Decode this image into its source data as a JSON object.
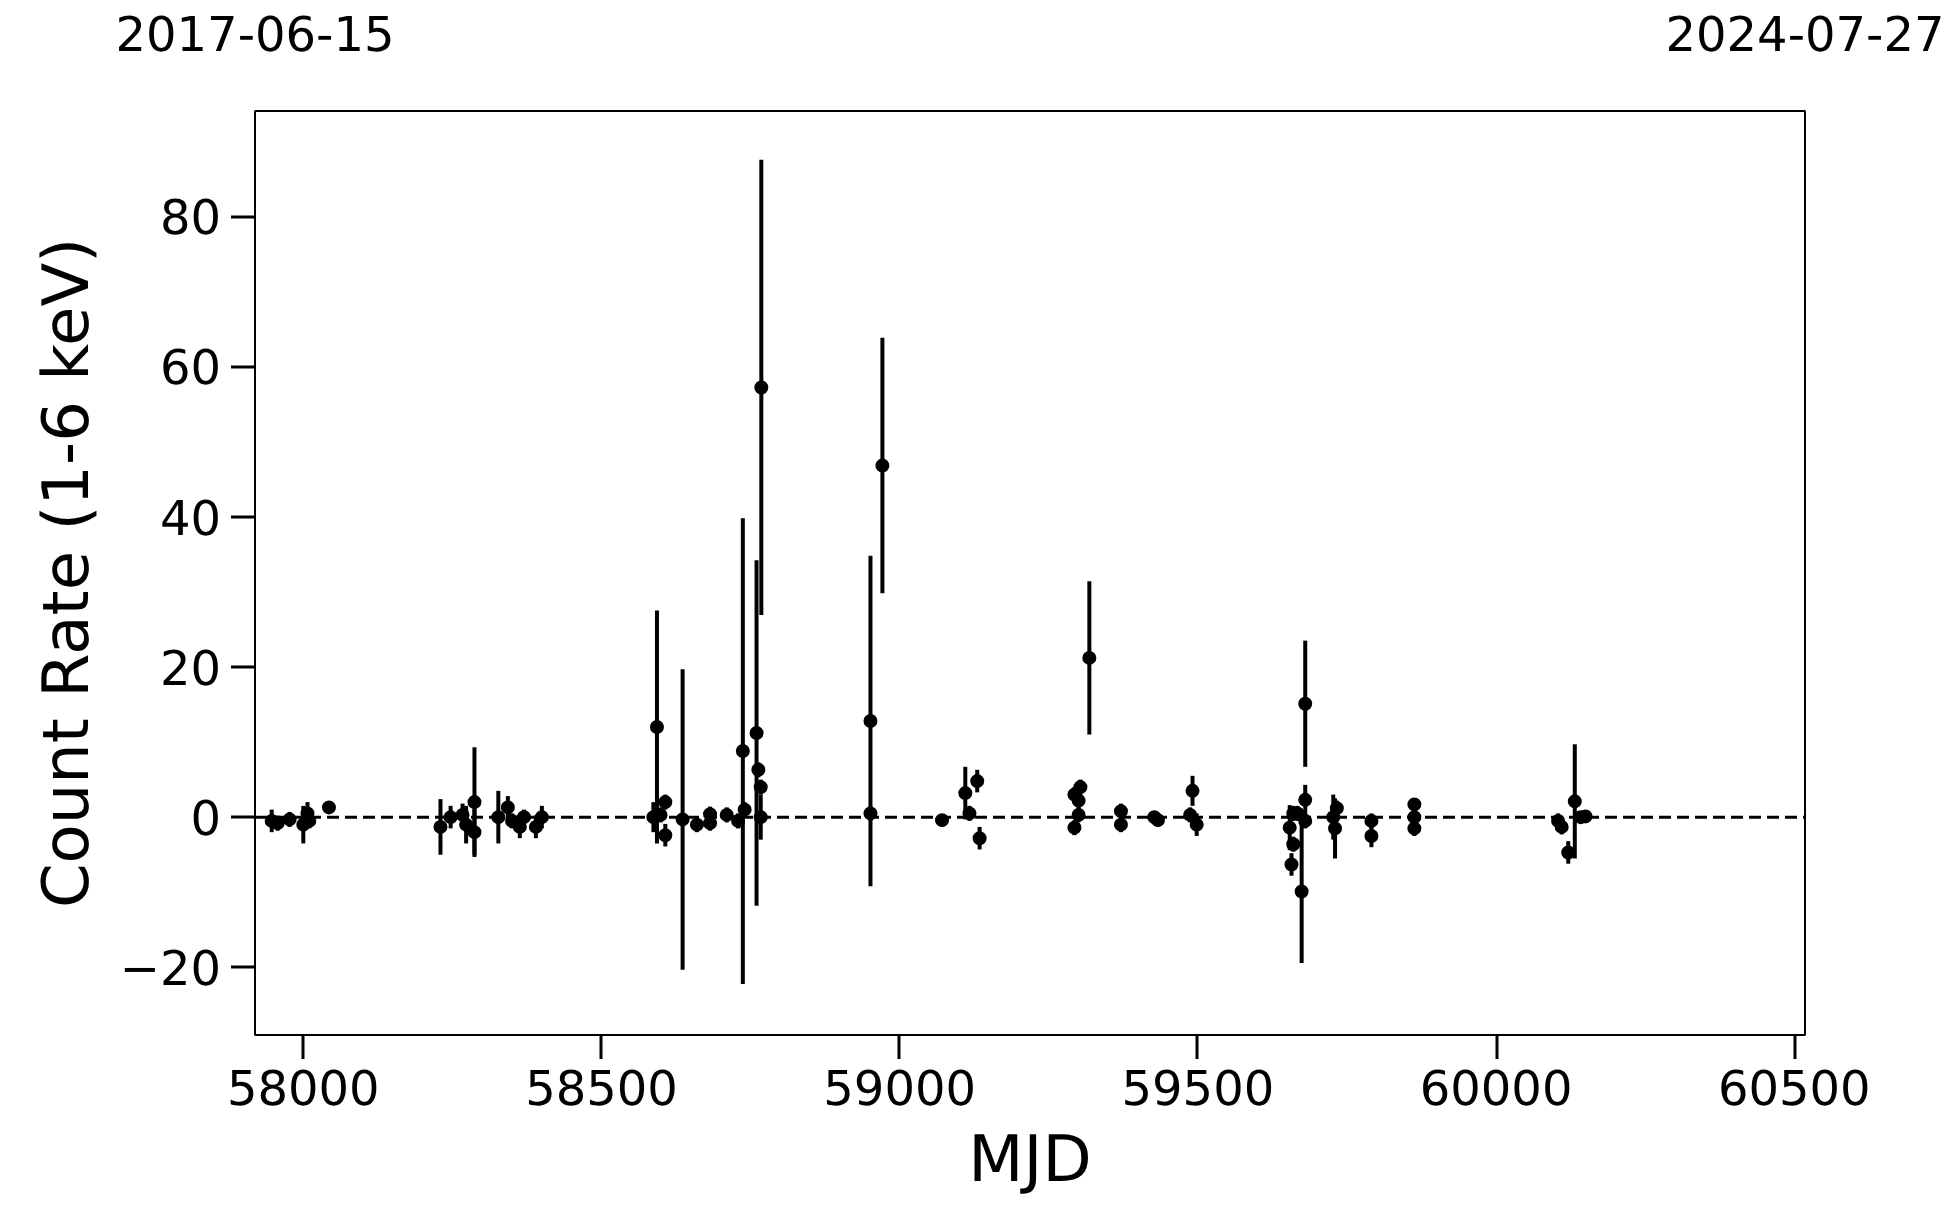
{
  "chart_data": {
    "type": "scatter",
    "xlabel": "MJD",
    "ylabel": "Count Rate (1-6 keV)",
    "x": [
      57947,
      57957,
      57977,
      58000,
      58007,
      58010,
      58043,
      58230,
      58247,
      58267,
      58273,
      58287,
      58287,
      58327,
      58343,
      58350,
      58363,
      58370,
      58390,
      58400,
      58593,
      58587,
      58599,
      58607,
      58607,
      58636,
      58660,
      58682,
      58682,
      58710,
      58729,
      58737,
      58740,
      58760,
      58763,
      58767,
      58767,
      58768,
      58951,
      58951,
      58971,
      59071,
      59110,
      59117,
      59130,
      59134,
      59293,
      59300,
      59303,
      59293,
      59300,
      59318,
      59371,
      59371,
      59427,
      59433,
      59491,
      59487,
      59498,
      59654,
      59660,
      59657,
      59660,
      59674,
      59680,
      59680,
      59680,
      59667,
      59727,
      59730,
      59733,
      59791,
      59791,
      59863,
      59863,
      59863,
      60104,
      60110,
      60132,
      60121,
      60142,
      60150
    ],
    "values": [
      -0.5,
      -0.8,
      -0.3,
      -1,
      0.5,
      -0.5,
      1.3,
      -1.3,
      0,
      0.3,
      -1,
      2,
      -2,
      0,
      1.3,
      -0.5,
      -1.3,
      0,
      -1.3,
      0,
      12,
      0,
      0.3,
      2,
      -2.4,
      -0.3,
      -1,
      0.4,
      -0.8,
      0.3,
      -0.5,
      8.8,
      1,
      11.2,
      6.3,
      4,
      0,
      57.2,
      12.8,
      0.5,
      46.8,
      -0.4,
      3.2,
      0.5,
      4.8,
      -2.8,
      3,
      2.2,
      4,
      -1.4,
      0.3,
      21.2,
      0.8,
      -1,
      0,
      -0.4,
      3.5,
      0.3,
      -1,
      -1.4,
      0.5,
      -6.3,
      -3.6,
      -9.9,
      15.1,
      2.3,
      -0.5,
      0.5,
      0,
      -1.5,
      1.2,
      -0.5,
      -2.5,
      1.7,
      0,
      -1.5,
      -0.5,
      -1.3,
      2.1,
      -4.7,
      0,
      0.1
    ],
    "errors": [
      1.5,
      1,
      1,
      2.5,
      1.5,
      1,
      0.5,
      3.7,
      1.5,
      1.5,
      2.5,
      7.3,
      3,
      3.5,
      1.5,
      1,
      1.5,
      1,
      1.5,
      1.5,
      15.5,
      2,
      1,
      1,
      1.5,
      20,
      1,
      1,
      1,
      1,
      1,
      31,
      1,
      23,
      1,
      1,
      3,
      30.3,
      22,
      1,
      17,
      0.5,
      3.5,
      1,
      1.5,
      1.5,
      1,
      1,
      1,
      1,
      1,
      10.2,
      1,
      1,
      0.5,
      0.5,
      2,
      1,
      1.5,
      3,
      1,
      1.5,
      1,
      9.5,
      8.4,
      2,
      1,
      1,
      3,
      4,
      1,
      1,
      1.5,
      0.8,
      1,
      1,
      1,
      1,
      7.6,
      1.5,
      0.5,
      0.5
    ],
    "color": "#000000",
    "marker": "circle",
    "xlim": [
      57919,
      60518
    ],
    "xticks": [
      58000,
      58500,
      59000,
      59500,
      60000,
      60500
    ],
    "ylim": [
      -29,
      94
    ],
    "yticks": [
      -20,
      0,
      20,
      40,
      60,
      80
    ],
    "x2lim": [
      "2017-06-15",
      "2024-07-27"
    ],
    "x2ticks": [
      "2017-06-15",
      "2024-07-27"
    ],
    "ref_lines": [
      {
        "axis": "y",
        "value": 0,
        "color": "#000000",
        "line_style": "dashed"
      }
    ],
    "grid": false
  }
}
